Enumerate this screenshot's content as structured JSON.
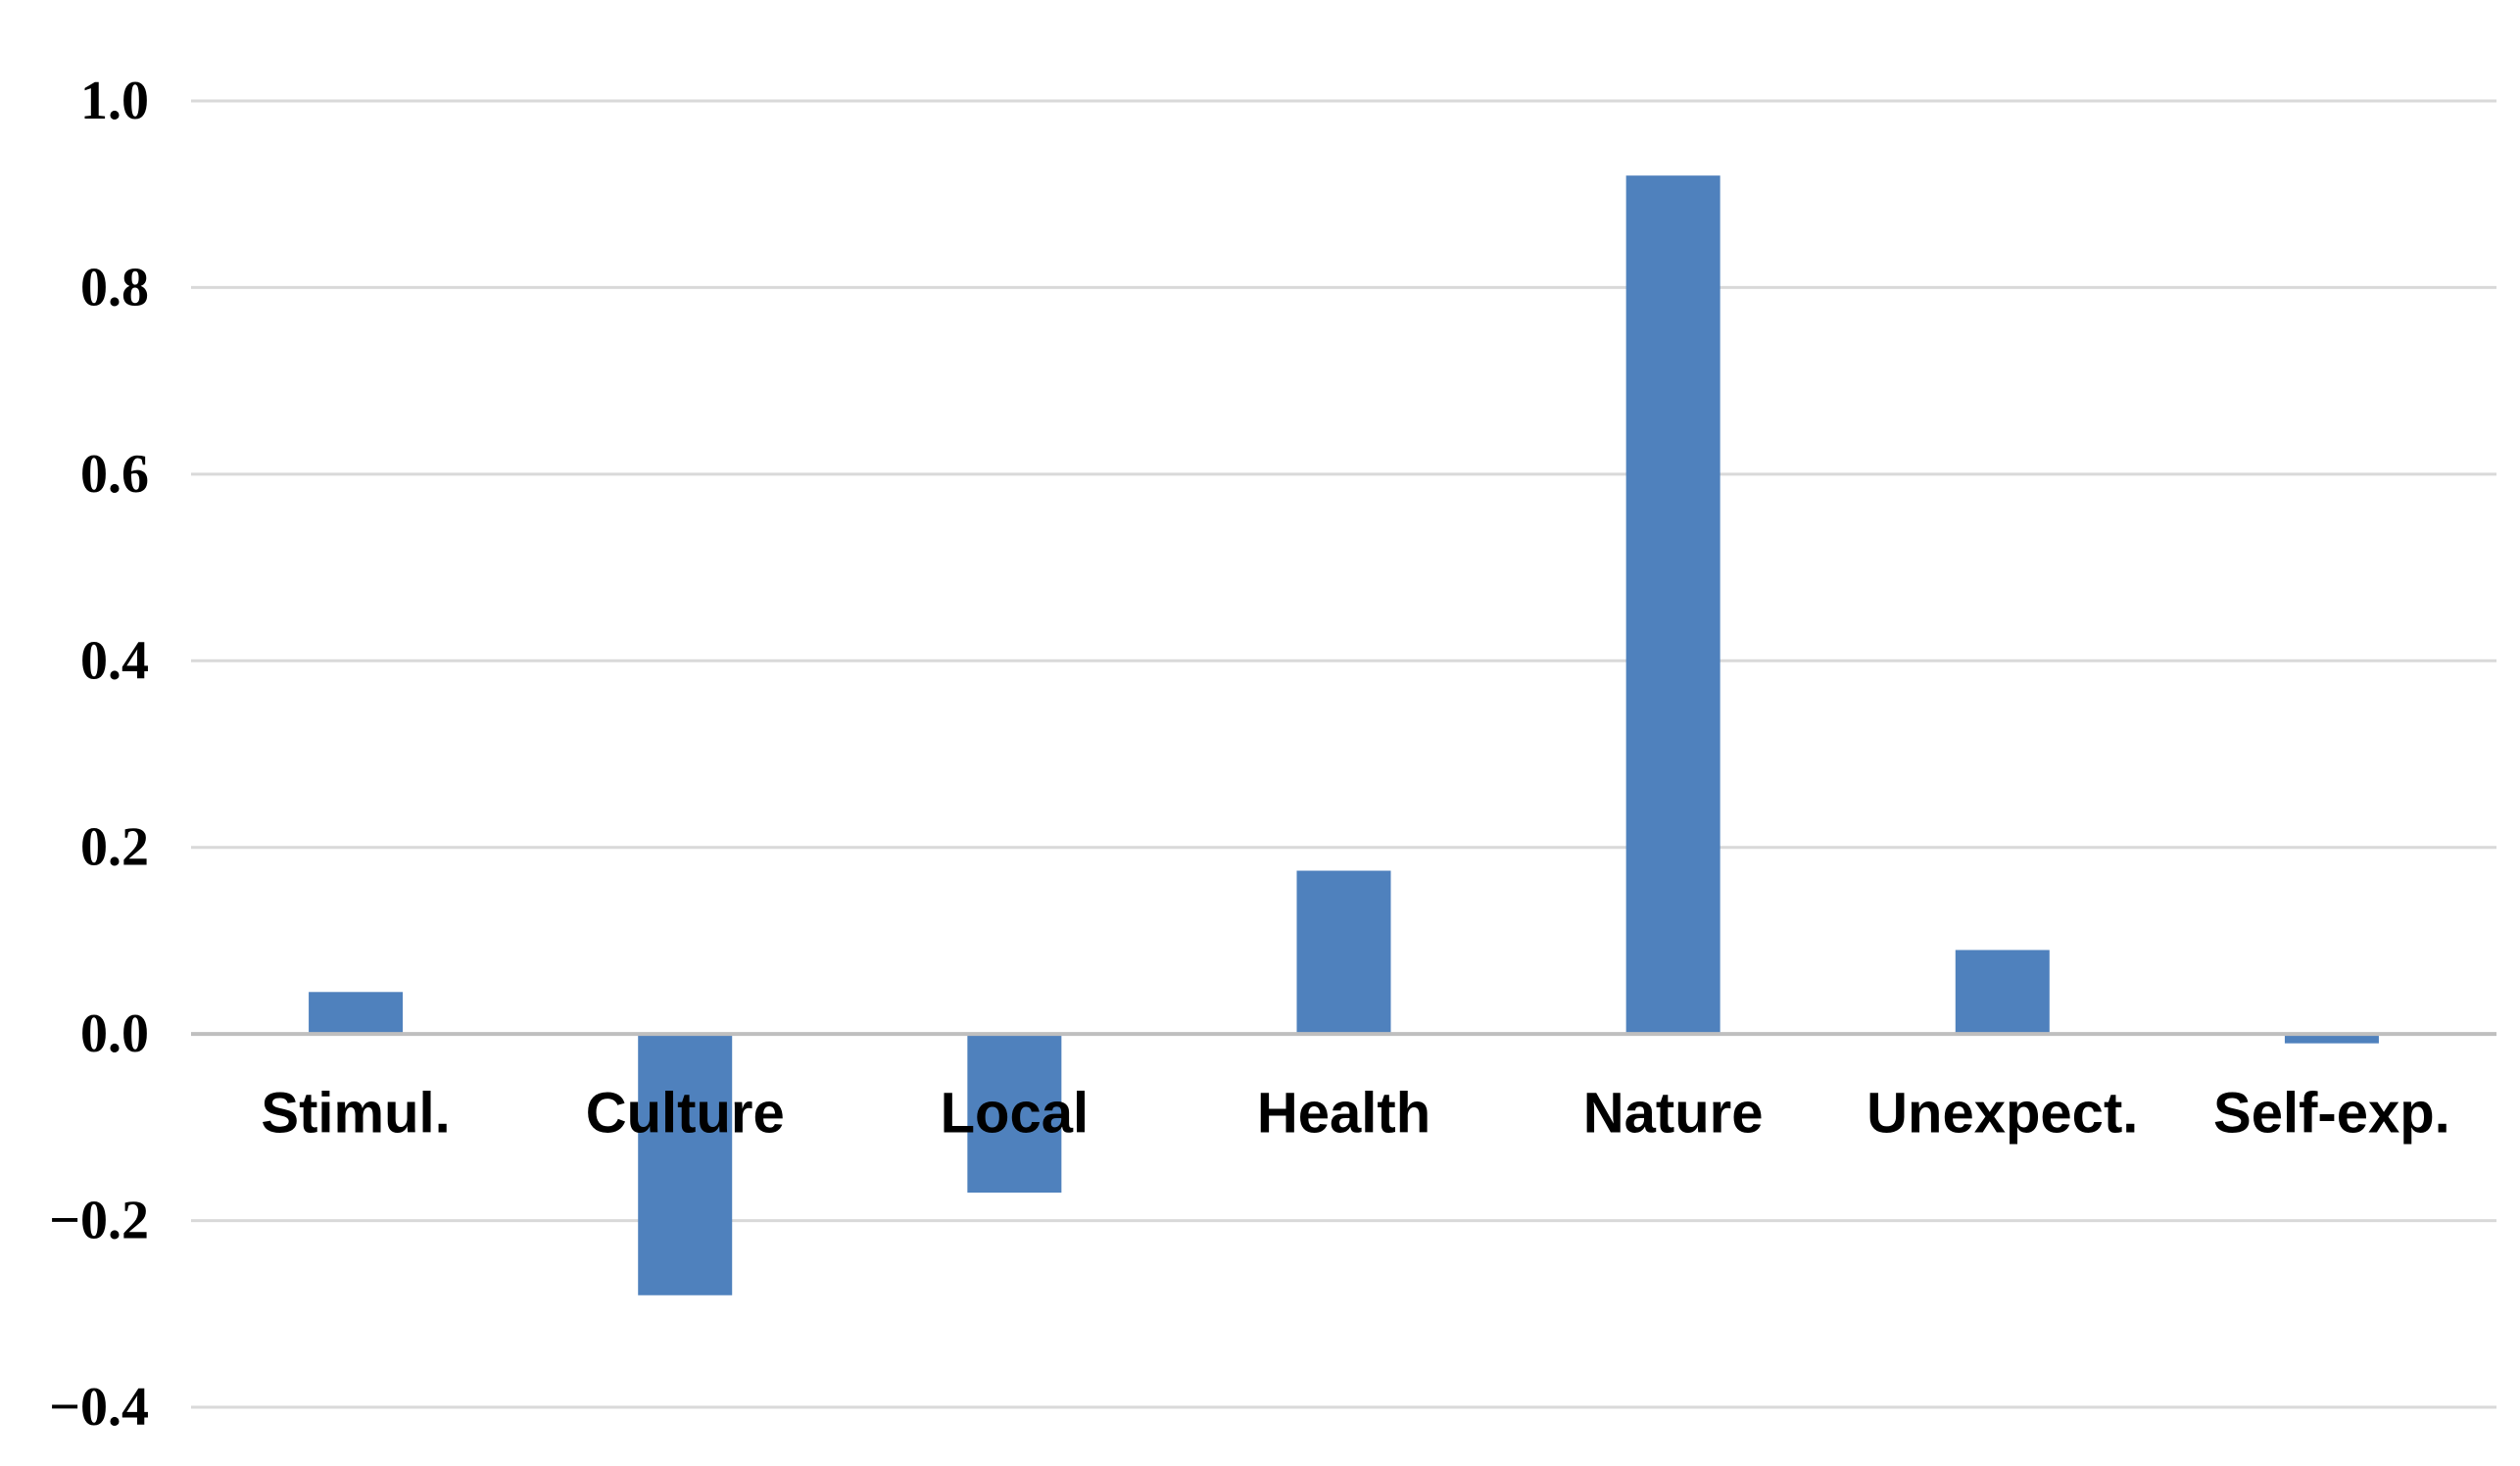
{
  "chart_data": {
    "type": "bar",
    "categories": [
      "Stimul.",
      "Culture",
      "Local",
      "Health",
      "Nature",
      "Unexpect.",
      "Self-exp."
    ],
    "values": [
      0.045,
      -0.28,
      -0.17,
      0.175,
      0.92,
      0.09,
      -0.01
    ],
    "ylim": [
      -0.4,
      1.0
    ],
    "yticks": [
      1.0,
      0.8,
      0.6,
      0.4,
      0.2,
      0.0,
      -0.2,
      -0.4
    ],
    "ytick_labels": [
      "1.0",
      "0.8",
      "0.6",
      "0.4",
      "0.2",
      "0.0",
      "−0.2",
      "−0.4"
    ],
    "grid": true,
    "legend": "none",
    "title": "",
    "xlabel": "",
    "ylabel": ""
  },
  "colors": {
    "bar": "#4f81bd",
    "grid": "#d9d9d9",
    "zero_line": "#bfbfbf",
    "text": "#000000"
  }
}
